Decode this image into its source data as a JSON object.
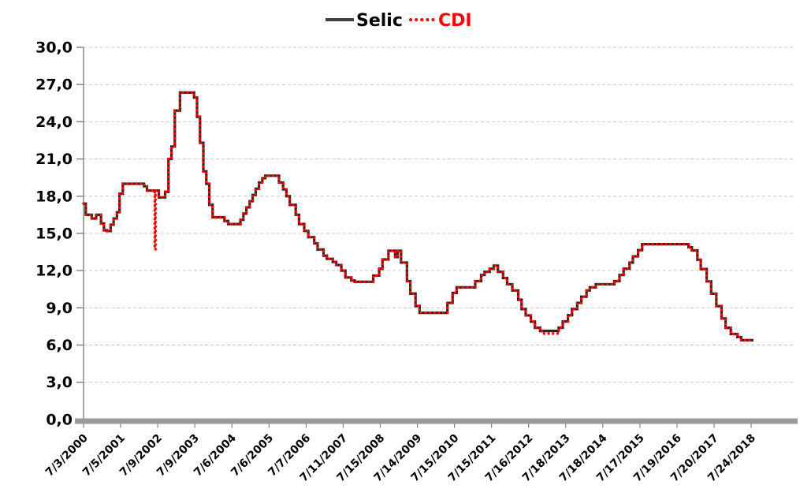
{
  "chart_data": {
    "type": "line",
    "title": "",
    "legend": {
      "position": "top-center",
      "entries": [
        {
          "label": "Selic",
          "text_color": "#000000",
          "line_color": "#404040",
          "style": "solid"
        },
        {
          "label": "CDI",
          "text_color": "#ff0000",
          "line_color": "#ff0000",
          "style": "dotted"
        }
      ]
    },
    "y_axis": {
      "min": 0,
      "max": 30,
      "step": 3,
      "decimal_separator": ",",
      "tick_labels": [
        "30,0",
        "27,0",
        "24,0",
        "21,0",
        "18,0",
        "15,0",
        "12,0",
        "9,0",
        "6,0",
        "3,0",
        "0,0"
      ],
      "tick_values": [
        30,
        27,
        24,
        21,
        18,
        15,
        12,
        9,
        6,
        3,
        0
      ]
    },
    "x_axis": {
      "tick_labels": [
        "7/3/2000",
        "7/5/2001",
        "7/9/2002",
        "7/9/2003",
        "7/6/2004",
        "7/6/2005",
        "7/7/2006",
        "7/11/2007",
        "7/15/2008",
        "7/14/2009",
        "7/15/2010",
        "7/15/2011",
        "7/16/2012",
        "7/18/2013",
        "7/18/2014",
        "7/17/2015",
        "7/19/2016",
        "7/20/2017",
        "7/24/2018"
      ],
      "start_year_fraction": 2000.5,
      "end_year_fraction": 2018.56,
      "rotation_deg": -45
    },
    "grid": {
      "horizontal": true,
      "style": "dashed",
      "color": "#c9c9c9"
    },
    "series": [
      {
        "name": "Selic",
        "color": "#262626",
        "style": "solid",
        "step": true,
        "points": [
          [
            2000.5,
            17.4
          ],
          [
            2000.56,
            16.5
          ],
          [
            2000.72,
            16.2
          ],
          [
            2000.84,
            16.5
          ],
          [
            2000.97,
            15.8
          ],
          [
            2001.05,
            15.25
          ],
          [
            2001.13,
            15.19
          ],
          [
            2001.23,
            15.7
          ],
          [
            2001.31,
            16.2
          ],
          [
            2001.4,
            16.7
          ],
          [
            2001.47,
            18.2
          ],
          [
            2001.56,
            19.0
          ],
          [
            2002.13,
            18.8
          ],
          [
            2002.21,
            18.45
          ],
          [
            2002.53,
            17.9
          ],
          [
            2002.7,
            18.35
          ],
          [
            2002.79,
            21.0
          ],
          [
            2002.87,
            22.0
          ],
          [
            2002.96,
            24.9
          ],
          [
            2003.1,
            26.35
          ],
          [
            2003.48,
            25.95
          ],
          [
            2003.56,
            24.4
          ],
          [
            2003.64,
            22.3
          ],
          [
            2003.73,
            20.0
          ],
          [
            2003.81,
            19.0
          ],
          [
            2003.89,
            17.3
          ],
          [
            2003.98,
            16.3
          ],
          [
            2004.3,
            16.0
          ],
          [
            2004.4,
            15.75
          ],
          [
            2004.73,
            16.1
          ],
          [
            2004.81,
            16.6
          ],
          [
            2004.89,
            17.1
          ],
          [
            2004.98,
            17.6
          ],
          [
            2005.06,
            18.1
          ],
          [
            2005.14,
            18.6
          ],
          [
            2005.23,
            19.1
          ],
          [
            2005.32,
            19.45
          ],
          [
            2005.4,
            19.65
          ],
          [
            2005.77,
            19.1
          ],
          [
            2005.88,
            18.55
          ],
          [
            2005.97,
            18.0
          ],
          [
            2006.06,
            17.3
          ],
          [
            2006.22,
            16.5
          ],
          [
            2006.31,
            15.75
          ],
          [
            2006.45,
            15.2
          ],
          [
            2006.56,
            14.7
          ],
          [
            2006.72,
            14.2
          ],
          [
            2006.81,
            13.7
          ],
          [
            2006.97,
            13.2
          ],
          [
            2007.06,
            12.95
          ],
          [
            2007.22,
            12.7
          ],
          [
            2007.31,
            12.45
          ],
          [
            2007.45,
            12.0
          ],
          [
            2007.56,
            11.45
          ],
          [
            2007.72,
            11.2
          ],
          [
            2007.81,
            11.1
          ],
          [
            2008.31,
            11.6
          ],
          [
            2008.47,
            12.15
          ],
          [
            2008.56,
            12.9
          ],
          [
            2008.72,
            13.6
          ],
          [
            2008.9,
            13.1
          ],
          [
            2008.97,
            13.6
          ],
          [
            2009.06,
            12.65
          ],
          [
            2009.22,
            11.15
          ],
          [
            2009.31,
            10.15
          ],
          [
            2009.45,
            9.15
          ],
          [
            2009.56,
            8.6
          ],
          [
            2010.31,
            9.4
          ],
          [
            2010.45,
            10.2
          ],
          [
            2010.56,
            10.65
          ],
          [
            2011.06,
            11.15
          ],
          [
            2011.22,
            11.65
          ],
          [
            2011.31,
            11.9
          ],
          [
            2011.45,
            12.15
          ],
          [
            2011.56,
            12.4
          ],
          [
            2011.67,
            11.9
          ],
          [
            2011.81,
            11.4
          ],
          [
            2011.92,
            10.9
          ],
          [
            2012.06,
            10.4
          ],
          [
            2012.22,
            9.65
          ],
          [
            2012.31,
            8.9
          ],
          [
            2012.42,
            8.39
          ],
          [
            2012.56,
            7.89
          ],
          [
            2012.67,
            7.39
          ],
          [
            2012.81,
            7.14
          ],
          [
            2013.31,
            7.4
          ],
          [
            2013.42,
            7.9
          ],
          [
            2013.56,
            8.4
          ],
          [
            2013.67,
            8.9
          ],
          [
            2013.81,
            9.4
          ],
          [
            2013.92,
            9.9
          ],
          [
            2014.06,
            10.4
          ],
          [
            2014.15,
            10.65
          ],
          [
            2014.31,
            10.9
          ],
          [
            2014.81,
            11.15
          ],
          [
            2014.95,
            11.65
          ],
          [
            2015.06,
            12.15
          ],
          [
            2015.22,
            12.65
          ],
          [
            2015.31,
            13.15
          ],
          [
            2015.45,
            13.65
          ],
          [
            2015.56,
            14.13
          ],
          [
            2016.81,
            13.88
          ],
          [
            2016.9,
            13.63
          ],
          [
            2017.05,
            12.88
          ],
          [
            2017.14,
            12.13
          ],
          [
            2017.3,
            11.13
          ],
          [
            2017.42,
            10.14
          ],
          [
            2017.56,
            9.14
          ],
          [
            2017.7,
            8.14
          ],
          [
            2017.81,
            7.39
          ],
          [
            2017.95,
            6.89
          ],
          [
            2018.13,
            6.64
          ],
          [
            2018.23,
            6.39
          ],
          [
            2018.56,
            6.39
          ]
        ]
      },
      {
        "name": "CDI",
        "color": "#ff0000",
        "style": "dotted",
        "step": true,
        "points": [
          [
            2000.5,
            17.4
          ],
          [
            2000.56,
            16.5
          ],
          [
            2000.72,
            16.2
          ],
          [
            2000.84,
            16.5
          ],
          [
            2000.97,
            15.8
          ],
          [
            2001.05,
            15.25
          ],
          [
            2001.13,
            15.19
          ],
          [
            2001.23,
            15.7
          ],
          [
            2001.31,
            16.2
          ],
          [
            2001.4,
            16.7
          ],
          [
            2001.47,
            18.2
          ],
          [
            2001.56,
            19.0
          ],
          [
            2002.13,
            18.8
          ],
          [
            2002.21,
            18.45
          ],
          [
            2002.4,
            18.45
          ],
          [
            2002.42,
            13.7
          ],
          [
            2002.44,
            18.45
          ],
          [
            2002.53,
            17.9
          ],
          [
            2002.7,
            18.35
          ],
          [
            2002.79,
            21.0
          ],
          [
            2002.87,
            22.0
          ],
          [
            2002.96,
            24.9
          ],
          [
            2003.1,
            26.35
          ],
          [
            2003.48,
            25.95
          ],
          [
            2003.56,
            24.4
          ],
          [
            2003.64,
            22.3
          ],
          [
            2003.73,
            20.0
          ],
          [
            2003.81,
            19.0
          ],
          [
            2003.89,
            17.3
          ],
          [
            2003.98,
            16.3
          ],
          [
            2004.3,
            16.0
          ],
          [
            2004.4,
            15.75
          ],
          [
            2004.73,
            16.1
          ],
          [
            2004.81,
            16.6
          ],
          [
            2004.89,
            17.1
          ],
          [
            2004.98,
            17.6
          ],
          [
            2005.06,
            18.1
          ],
          [
            2005.14,
            18.6
          ],
          [
            2005.23,
            19.1
          ],
          [
            2005.32,
            19.45
          ],
          [
            2005.4,
            19.65
          ],
          [
            2005.77,
            19.1
          ],
          [
            2005.88,
            18.55
          ],
          [
            2005.97,
            18.0
          ],
          [
            2006.06,
            17.3
          ],
          [
            2006.22,
            16.5
          ],
          [
            2006.31,
            15.75
          ],
          [
            2006.45,
            15.2
          ],
          [
            2006.56,
            14.7
          ],
          [
            2006.72,
            14.2
          ],
          [
            2006.81,
            13.7
          ],
          [
            2006.97,
            13.2
          ],
          [
            2007.06,
            12.95
          ],
          [
            2007.22,
            12.7
          ],
          [
            2007.31,
            12.45
          ],
          [
            2007.45,
            12.0
          ],
          [
            2007.56,
            11.45
          ],
          [
            2007.72,
            11.2
          ],
          [
            2007.81,
            11.1
          ],
          [
            2008.31,
            11.6
          ],
          [
            2008.47,
            12.15
          ],
          [
            2008.56,
            12.9
          ],
          [
            2008.72,
            13.6
          ],
          [
            2008.9,
            13.1
          ],
          [
            2008.97,
            13.6
          ],
          [
            2009.06,
            12.65
          ],
          [
            2009.22,
            11.15
          ],
          [
            2009.31,
            10.15
          ],
          [
            2009.45,
            9.15
          ],
          [
            2009.56,
            8.6
          ],
          [
            2010.31,
            9.4
          ],
          [
            2010.45,
            10.2
          ],
          [
            2010.56,
            10.65
          ],
          [
            2011.06,
            11.15
          ],
          [
            2011.22,
            11.65
          ],
          [
            2011.31,
            11.9
          ],
          [
            2011.45,
            12.15
          ],
          [
            2011.56,
            12.4
          ],
          [
            2011.67,
            11.9
          ],
          [
            2011.81,
            11.4
          ],
          [
            2011.92,
            10.9
          ],
          [
            2012.06,
            10.4
          ],
          [
            2012.22,
            9.65
          ],
          [
            2012.31,
            8.9
          ],
          [
            2012.42,
            8.39
          ],
          [
            2012.56,
            7.89
          ],
          [
            2012.67,
            7.39
          ],
          [
            2012.81,
            7.11
          ],
          [
            2012.9,
            6.93
          ],
          [
            2013.31,
            7.4
          ],
          [
            2013.42,
            7.9
          ],
          [
            2013.56,
            8.4
          ],
          [
            2013.67,
            8.9
          ],
          [
            2013.81,
            9.4
          ],
          [
            2013.92,
            9.9
          ],
          [
            2014.06,
            10.4
          ],
          [
            2014.15,
            10.65
          ],
          [
            2014.31,
            10.9
          ],
          [
            2014.81,
            11.15
          ],
          [
            2014.95,
            11.65
          ],
          [
            2015.06,
            12.15
          ],
          [
            2015.22,
            12.65
          ],
          [
            2015.31,
            13.15
          ],
          [
            2015.45,
            13.65
          ],
          [
            2015.56,
            14.13
          ],
          [
            2016.81,
            13.88
          ],
          [
            2016.9,
            13.63
          ],
          [
            2017.05,
            12.88
          ],
          [
            2017.14,
            12.13
          ],
          [
            2017.3,
            11.13
          ],
          [
            2017.42,
            10.14
          ],
          [
            2017.56,
            9.14
          ],
          [
            2017.7,
            8.14
          ],
          [
            2017.81,
            7.39
          ],
          [
            2017.95,
            6.89
          ],
          [
            2018.13,
            6.64
          ],
          [
            2018.23,
            6.39
          ],
          [
            2018.56,
            6.39
          ]
        ]
      }
    ],
    "colors": {
      "background": "#ffffff",
      "axis_line": "#808080",
      "axis_bar": "#9a9a9a",
      "grid": "#c9c9c9",
      "tick_text": "#000000"
    }
  }
}
